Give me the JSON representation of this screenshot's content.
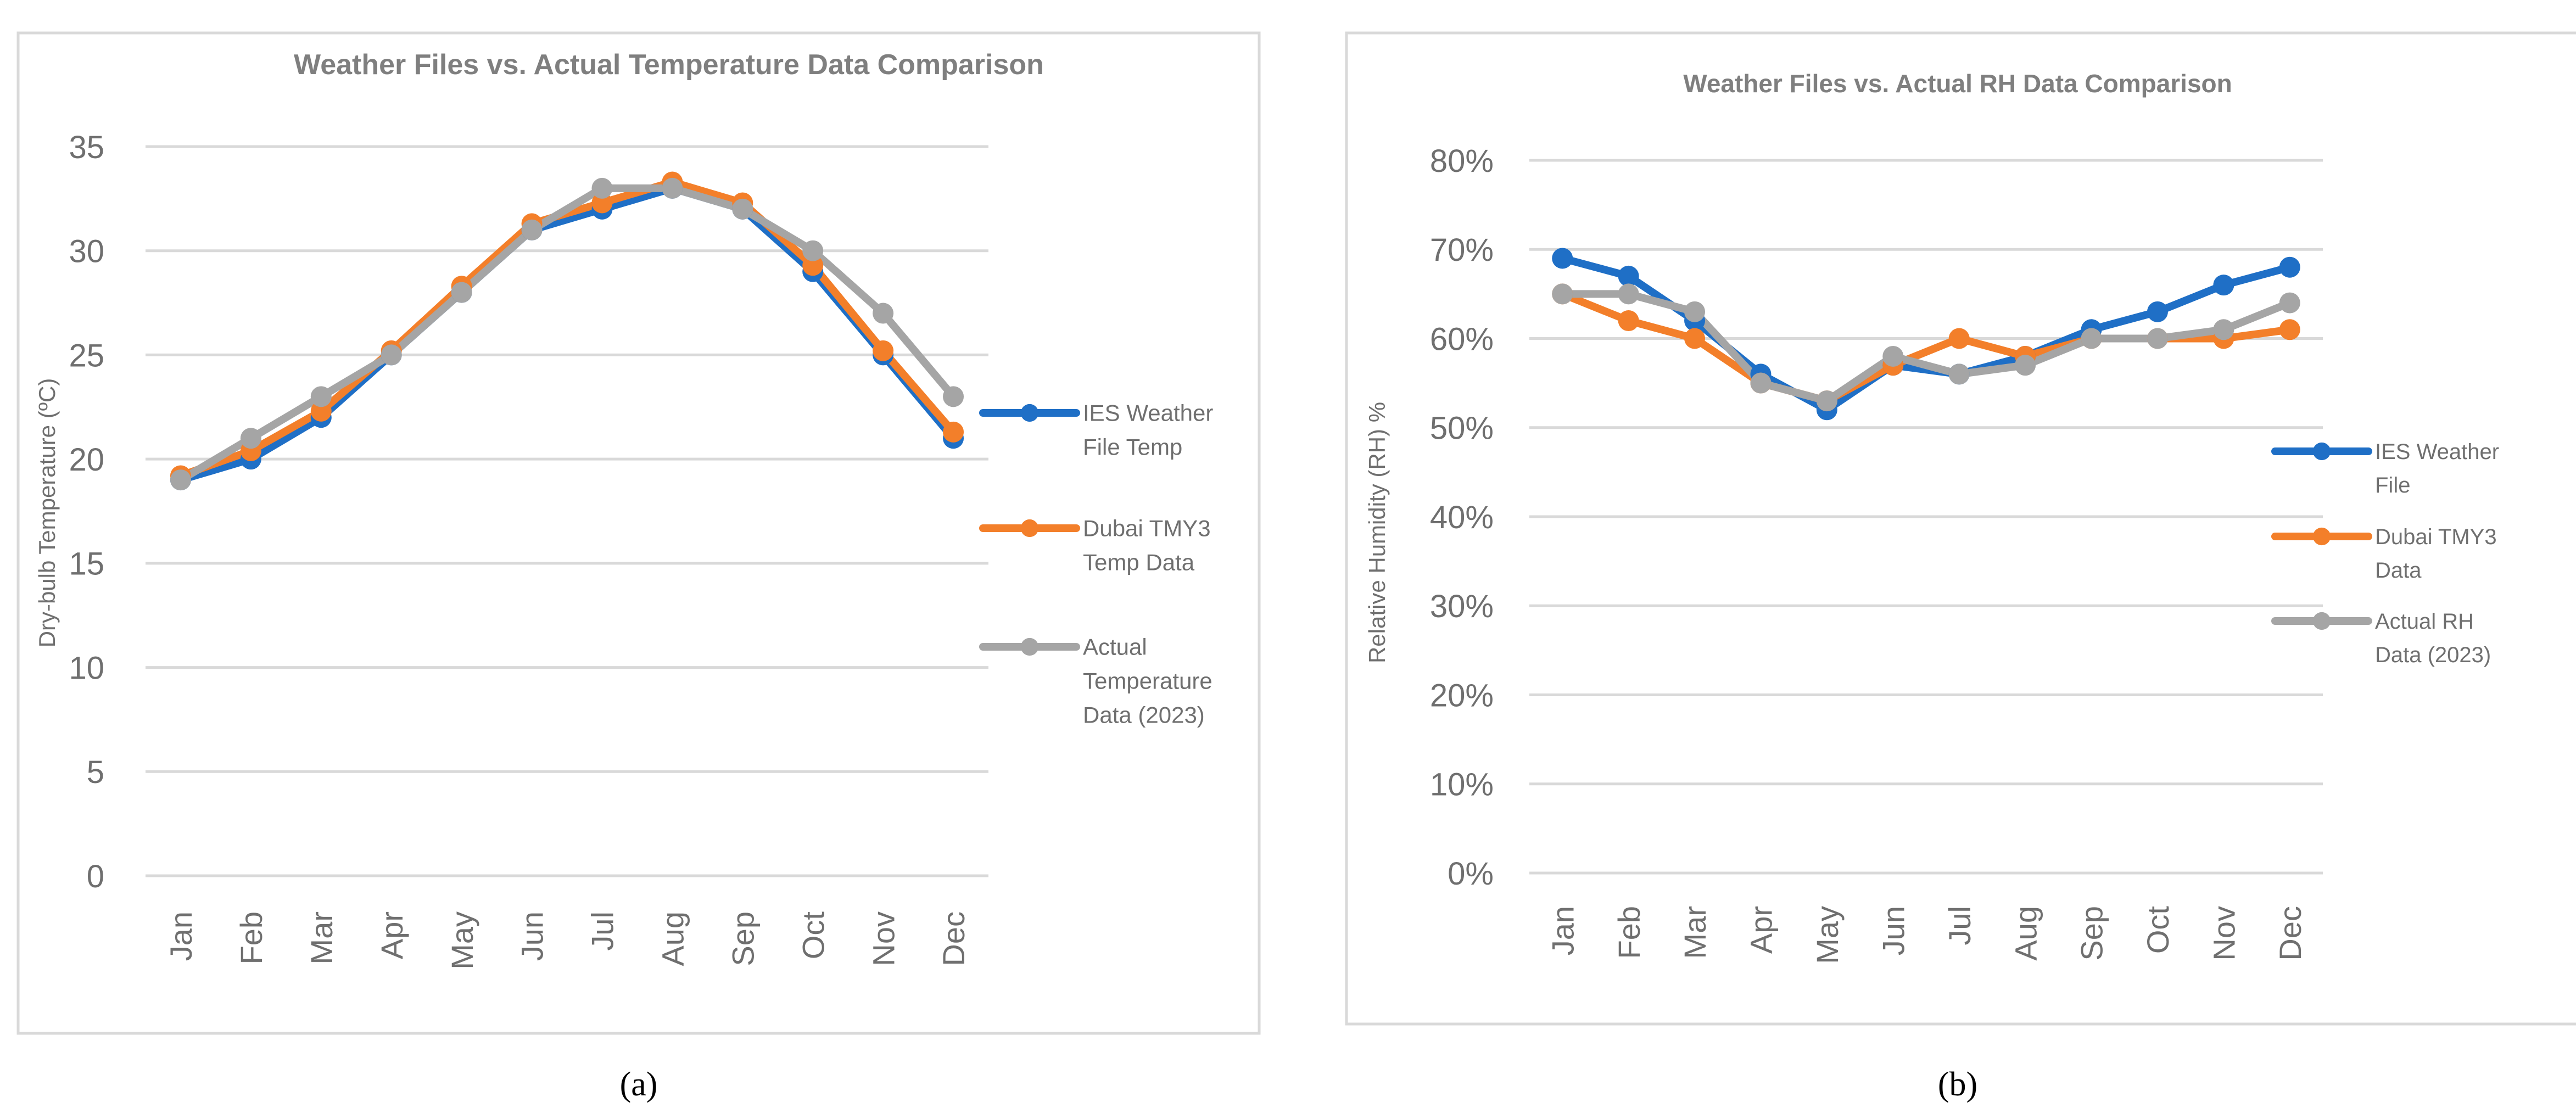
{
  "chart_data": [
    {
      "type": "line",
      "panel_label": "(a)",
      "title": "Weather Files vs. Actual Temperature Data Comparison",
      "xlabel": "",
      "ylabel": "Dry-bulb Temperature (ºC)",
      "ylim": [
        0,
        35
      ],
      "yticks": [
        "0",
        "5",
        "10",
        "15",
        "20",
        "25",
        "30",
        "35"
      ],
      "categories": [
        "Jan",
        "Feb",
        "Mar",
        "Apr",
        "May",
        "Jun",
        "Jul",
        "Aug",
        "Sep",
        "Oct",
        "Nov",
        "Dec"
      ],
      "grid": "horizontal",
      "legend_position": "right",
      "series": [
        {
          "name": "IES Weather File Temp",
          "legend_lines": [
            "IES Weather",
            "File Temp"
          ],
          "color": "#1f6fc6",
          "values": [
            19,
            20,
            22,
            25,
            28,
            31,
            32,
            33,
            32,
            29,
            25,
            21
          ]
        },
        {
          "name": "Dubai TMY3 Temp Data",
          "legend_lines": [
            "Dubai TMY3",
            "Temp Data"
          ],
          "color": "#f37f2a",
          "values": [
            19.2,
            20.4,
            22.3,
            25.2,
            28.3,
            31.3,
            32.3,
            33.3,
            32.3,
            29.3,
            25.2,
            21.3
          ]
        },
        {
          "name": "Actual Temperature Data (2023)",
          "legend_lines": [
            "Actual",
            "Temperature",
            "Data (2023)"
          ],
          "color": "#a5a5a5",
          "values": [
            19,
            21,
            23,
            25,
            28,
            31,
            33,
            33,
            32,
            30,
            27,
            23
          ]
        }
      ]
    },
    {
      "type": "line",
      "panel_label": "(b)",
      "title": "Weather Files vs. Actual RH Data Comparison",
      "xlabel": "",
      "ylabel": "Relative Humidity (RH) %",
      "ylim": [
        0,
        80
      ],
      "yticks": [
        "0%",
        "10%",
        "20%",
        "30%",
        "40%",
        "50%",
        "60%",
        "70%",
        "80%"
      ],
      "categories": [
        "Jan",
        "Feb",
        "Mar",
        "Apr",
        "May",
        "Jun",
        "Jul",
        "Aug",
        "Sep",
        "Oct",
        "Nov",
        "Dec"
      ],
      "grid": "horizontal",
      "legend_position": "right",
      "series": [
        {
          "name": "IES Weather File",
          "legend_lines": [
            "IES Weather",
            "File"
          ],
          "color": "#1f6fc6",
          "values": [
            69,
            67,
            62,
            56,
            52,
            57,
            56,
            58,
            61,
            63,
            66,
            68
          ]
        },
        {
          "name": "Dubai TMY3 Data",
          "legend_lines": [
            "Dubai TMY3",
            "Data"
          ],
          "color": "#f37f2a",
          "values": [
            65,
            62,
            60,
            55,
            53,
            57,
            60,
            58,
            60,
            60,
            60,
            61
          ]
        },
        {
          "name": "Actual RH Data (2023)",
          "legend_lines": [
            "Actual RH",
            "Data (2023)"
          ],
          "color": "#a5a5a5",
          "values": [
            65,
            65,
            63,
            55,
            53,
            58,
            56,
            57,
            60,
            60,
            61,
            64
          ]
        }
      ]
    }
  ]
}
